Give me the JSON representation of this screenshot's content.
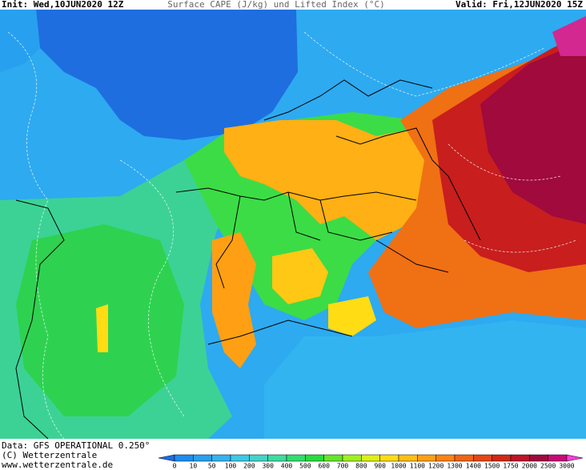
{
  "header": {
    "init": "Init: Wed,10JUN2020 12Z",
    "title": "Surface CAPE (J/kg) und Lifted Index (°C)",
    "valid": "Valid: Fri,12JUN2020 15Z"
  },
  "footer": {
    "source": "Data: GFS OPERATIONAL 0.250°",
    "copyright": "(C) Wetterzentrale",
    "url": "www.wetterzentrale.de"
  },
  "colorbar": {
    "ticks": [
      0,
      10,
      50,
      100,
      200,
      300,
      400,
      500,
      600,
      700,
      800,
      900,
      1000,
      1100,
      1200,
      1300,
      1400,
      1500,
      1750,
      2000,
      2500,
      3000
    ],
    "colors": [
      "#1a6ee6",
      "#1e8cf0",
      "#28a0f0",
      "#32b4f0",
      "#3cc8e6",
      "#46d2c8",
      "#3cdca0",
      "#32dc6e",
      "#28dc3c",
      "#64e628",
      "#a0f01e",
      "#dcf014",
      "#ffdc14",
      "#ffbe14",
      "#ffa014",
      "#ff8214",
      "#f06414",
      "#e64614",
      "#d22814",
      "#be1428",
      "#a00a3c",
      "#c80a78",
      "#ff3cdc"
    ]
  }
}
